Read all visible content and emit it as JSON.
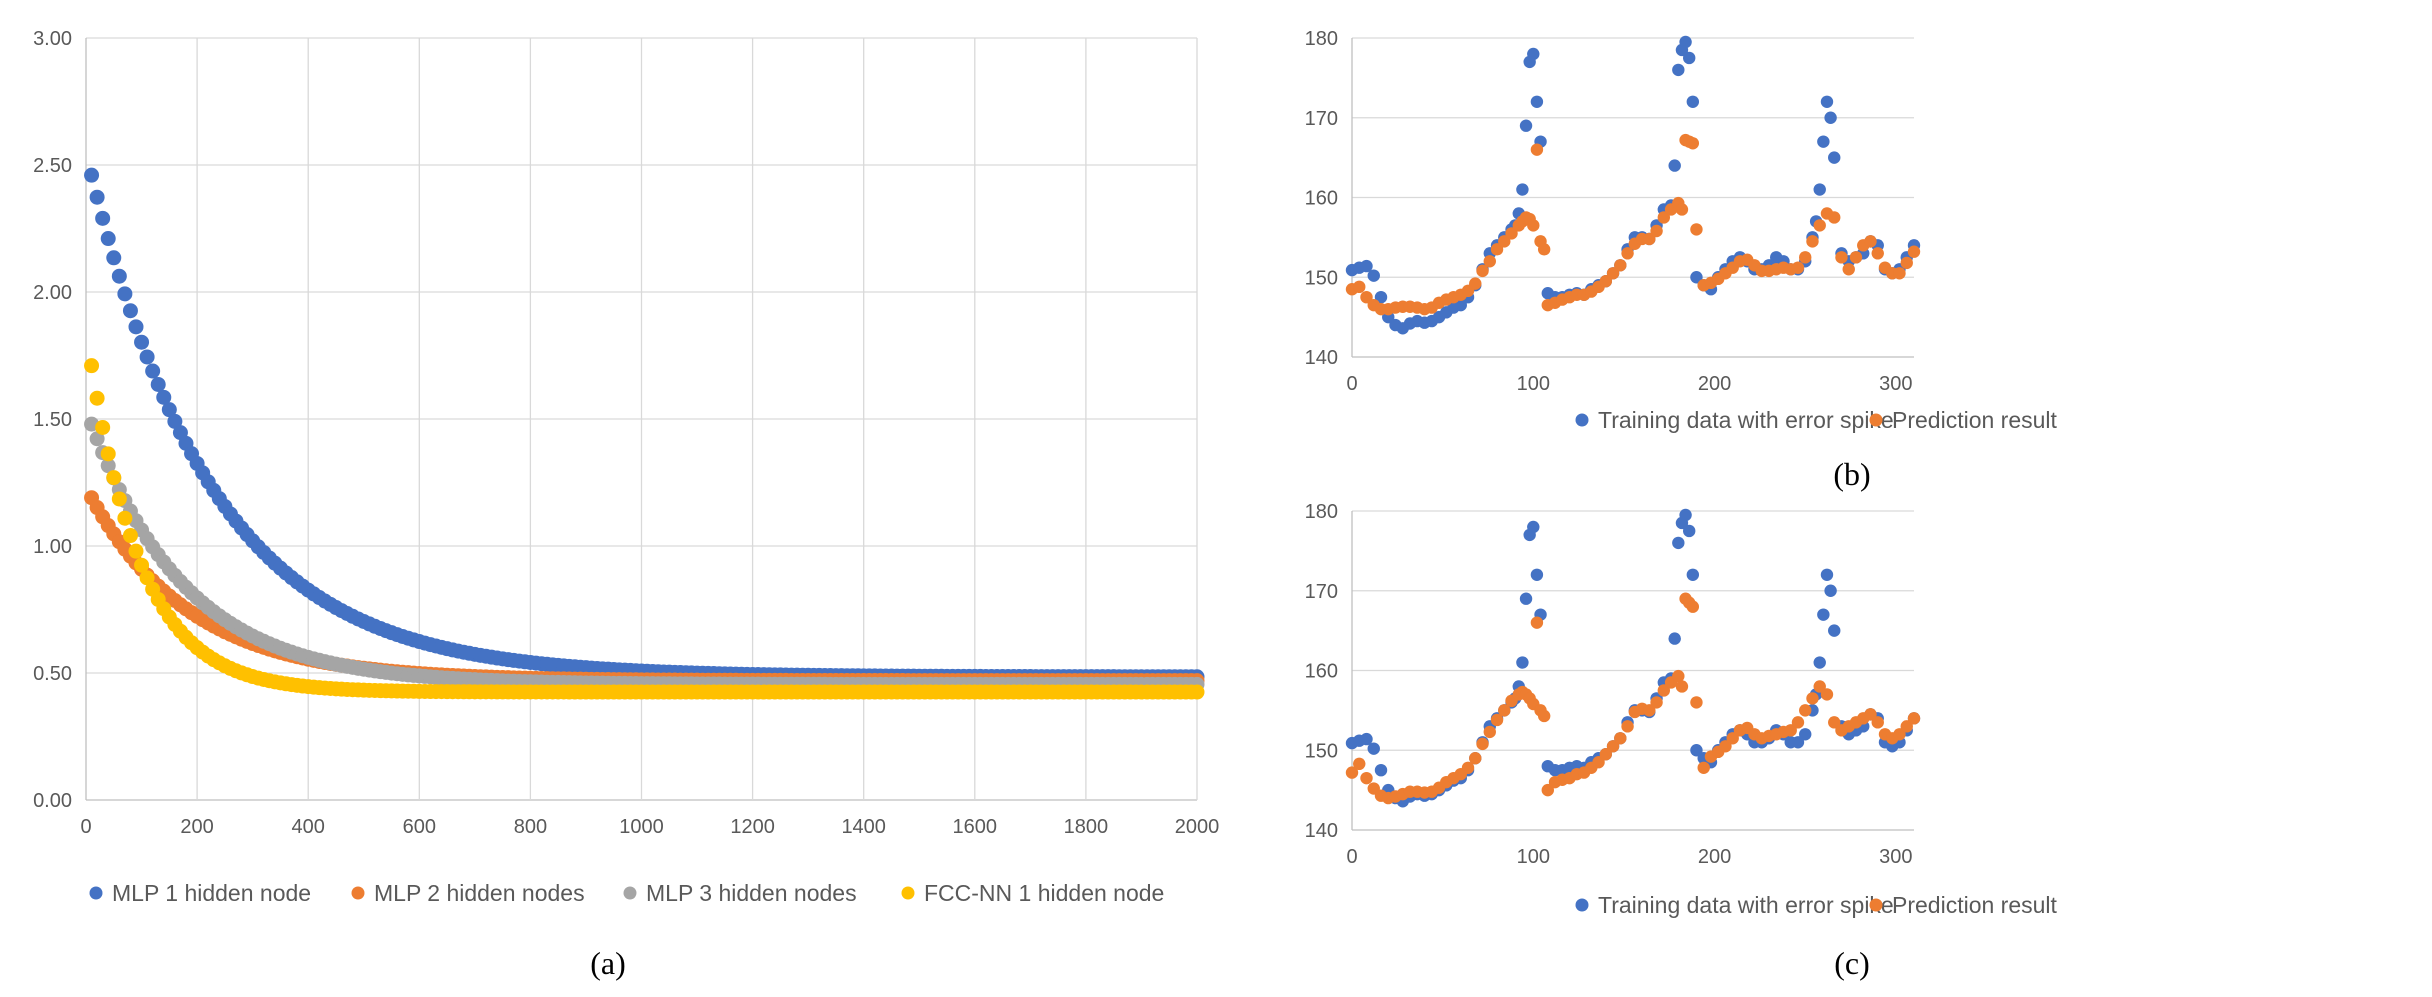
{
  "colors": {
    "blue": "#4472C4",
    "orange": "#ED7D31",
    "gray": "#A5A5A5",
    "gold": "#FFC000",
    "grid": "#D9D9D9",
    "axis": "#BFBFBF"
  },
  "chart_data": [
    {
      "id": "a",
      "type": "scatter",
      "caption": "(a)",
      "xlim": [
        0,
        2000
      ],
      "ylim": [
        0,
        3
      ],
      "x_ticks": [
        "0",
        "200",
        "400",
        "600",
        "800",
        "1000",
        "1200",
        "1400",
        "1600",
        "1800",
        "2000"
      ],
      "y_ticks": [
        "0.00",
        "0.50",
        "1.00",
        "1.50",
        "2.00",
        "2.50",
        "3.00"
      ],
      "grid": true,
      "legend_position": "bottom",
      "series": [
        {
          "name": "MLP 1 hidden node",
          "color": "#4472C4",
          "x_start": 10,
          "x_step": 10,
          "count": 200,
          "start": 2.46,
          "end": 0.485,
          "decay": 0.0045
        },
        {
          "name": "MLP 2 hidden nodes",
          "color": "#ED7D31",
          "x_start": 10,
          "x_step": 10,
          "count": 200,
          "start": 1.19,
          "end": 0.47,
          "decay": 0.0055
        },
        {
          "name": "MLP 3 hidden nodes",
          "color": "#A5A5A5",
          "x_start": 10,
          "x_step": 10,
          "count": 200,
          "start": 1.48,
          "end": 0.455,
          "decay": 0.0058
        },
        {
          "name": "FCC-NN 1 hidden node",
          "color": "#FFC000",
          "x_start": 10,
          "x_step": 10,
          "count": 200,
          "start": 1.71,
          "end": 0.425,
          "decay": 0.0105
        }
      ]
    },
    {
      "id": "b",
      "type": "scatter",
      "caption": "(b)",
      "xlim": [
        0,
        310
      ],
      "ylim": [
        140,
        180
      ],
      "x_ticks": [
        "0",
        "100",
        "200",
        "300"
      ],
      "y_ticks": [
        "140",
        "150",
        "160",
        "170",
        "180"
      ],
      "grid": true,
      "legend_position": "bottom",
      "series": [
        {
          "name": "Training data with error spike",
          "color": "#4472C4",
          "x": [
            0,
            4,
            8,
            12,
            16,
            20,
            24,
            28,
            32,
            36,
            40,
            44,
            48,
            52,
            56,
            60,
            64,
            68,
            72,
            76,
            80,
            84,
            88,
            90,
            92,
            94,
            96,
            98,
            100,
            102,
            104,
            108,
            112,
            116,
            120,
            124,
            128,
            132,
            136,
            140,
            144,
            148,
            152,
            156,
            160,
            164,
            168,
            172,
            176,
            178,
            180,
            182,
            184,
            186,
            188,
            190,
            194,
            198,
            202,
            206,
            210,
            214,
            218,
            222,
            226,
            230,
            234,
            238,
            242,
            246,
            250,
            254,
            256,
            258,
            260,
            262,
            264,
            266,
            270,
            274,
            278,
            282,
            286,
            290,
            294,
            298,
            302,
            306,
            310
          ],
          "y": [
            150.9,
            151.2,
            151.4,
            150.2,
            147.5,
            145,
            144,
            143.6,
            144.2,
            144.5,
            144.3,
            144.5,
            145,
            145.6,
            146.2,
            146.5,
            147.5,
            149,
            151,
            153,
            154,
            155,
            156,
            156.5,
            158,
            161,
            169,
            177,
            178,
            172,
            167,
            148,
            147.5,
            147.5,
            147.8,
            148,
            147.8,
            148.5,
            149,
            149.5,
            150.5,
            151.5,
            153.5,
            155,
            155,
            154.8,
            156.5,
            158.5,
            159,
            164,
            176,
            178.5,
            179.5,
            177.5,
            172,
            150,
            149,
            148.5,
            150,
            151,
            152,
            152.5,
            152,
            151,
            151,
            151.5,
            152.5,
            152,
            151,
            151,
            152,
            155,
            157,
            161,
            167,
            172,
            170,
            165,
            153,
            152,
            152.5,
            153,
            154.5,
            154,
            151,
            150.5,
            151,
            152.5,
            154
          ]
        },
        {
          "name": "Prediction result",
          "color": "#ED7D31",
          "x": [
            0,
            4,
            8,
            12,
            16,
            20,
            24,
            28,
            32,
            36,
            40,
            44,
            48,
            52,
            56,
            60,
            64,
            68,
            72,
            76,
            80,
            84,
            88,
            92,
            94,
            96,
            98,
            100,
            102,
            104,
            106,
            108,
            112,
            116,
            120,
            124,
            128,
            132,
            136,
            140,
            144,
            148,
            152,
            156,
            160,
            164,
            168,
            172,
            176,
            180,
            182,
            184,
            186,
            188,
            190,
            194,
            198,
            202,
            206,
            210,
            214,
            218,
            222,
            226,
            230,
            234,
            238,
            242,
            246,
            250,
            254,
            258,
            262,
            266,
            270,
            274,
            278,
            282,
            286,
            290,
            294,
            298,
            302,
            306,
            310
          ],
          "y": [
            148.5,
            148.8,
            147.5,
            146.5,
            146,
            146,
            146.2,
            146.3,
            146.3,
            146.2,
            146,
            146.2,
            146.8,
            147.2,
            147.5,
            147.8,
            148.3,
            149.2,
            150.8,
            152,
            153.5,
            154.5,
            155.5,
            156.5,
            157,
            157.5,
            157.3,
            156.5,
            166,
            154.5,
            153.5,
            146.5,
            146.8,
            147.2,
            147.5,
            147.8,
            147.8,
            148.2,
            148.8,
            149.5,
            150.5,
            151.5,
            153,
            154.2,
            154.8,
            154.8,
            155.8,
            157.5,
            158.5,
            159.3,
            158.5,
            167.2,
            167,
            166.8,
            156,
            149,
            149.3,
            149.8,
            150.5,
            151.2,
            152,
            152.2,
            151.5,
            150.8,
            150.8,
            151,
            151.2,
            151,
            151.2,
            152.5,
            154.5,
            156.5,
            158,
            157.5,
            152.5,
            151,
            152.5,
            154,
            154.5,
            153,
            151.2,
            150.5,
            150.5,
            151.8,
            153.2
          ]
        }
      ]
    },
    {
      "id": "c",
      "type": "scatter",
      "caption": "(c)",
      "xlim": [
        0,
        310
      ],
      "ylim": [
        140,
        180
      ],
      "x_ticks": [
        "0",
        "100",
        "200",
        "300"
      ],
      "y_ticks": [
        "140",
        "150",
        "160",
        "170",
        "180"
      ],
      "grid": true,
      "legend_position": "bottom",
      "series": [
        {
          "name": "Training data with error spike",
          "color": "#4472C4",
          "x": [
            0,
            4,
            8,
            12,
            16,
            20,
            24,
            28,
            32,
            36,
            40,
            44,
            48,
            52,
            56,
            60,
            64,
            68,
            72,
            76,
            80,
            84,
            88,
            90,
            92,
            94,
            96,
            98,
            100,
            102,
            104,
            108,
            112,
            116,
            120,
            124,
            128,
            132,
            136,
            140,
            144,
            148,
            152,
            156,
            160,
            164,
            168,
            172,
            176,
            178,
            180,
            182,
            184,
            186,
            188,
            190,
            194,
            198,
            202,
            206,
            210,
            214,
            218,
            222,
            226,
            230,
            234,
            238,
            242,
            246,
            250,
            254,
            256,
            258,
            260,
            262,
            264,
            266,
            270,
            274,
            278,
            282,
            286,
            290,
            294,
            298,
            302,
            306,
            310
          ],
          "y": [
            150.9,
            151.2,
            151.4,
            150.2,
            147.5,
            145,
            144,
            143.6,
            144.2,
            144.5,
            144.3,
            144.5,
            145,
            145.6,
            146.2,
            146.5,
            147.5,
            149,
            151,
            153,
            154,
            155,
            156,
            156.5,
            158,
            161,
            169,
            177,
            178,
            172,
            167,
            148,
            147.5,
            147.5,
            147.8,
            148,
            147.8,
            148.5,
            149,
            149.5,
            150.5,
            151.5,
            153.5,
            155,
            155,
            154.8,
            156.5,
            158.5,
            159,
            164,
            176,
            178.5,
            179.5,
            177.5,
            172,
            150,
            149,
            148.5,
            150,
            151,
            152,
            152.5,
            152,
            151,
            151,
            151.5,
            152.5,
            152,
            151,
            151,
            152,
            155,
            157,
            161,
            167,
            172,
            170,
            165,
            153,
            152,
            152.5,
            153,
            154.5,
            154,
            151,
            150.5,
            151,
            152.5,
            154
          ]
        },
        {
          "name": "Prediction result",
          "color": "#ED7D31",
          "x": [
            0,
            4,
            8,
            12,
            16,
            20,
            24,
            28,
            32,
            36,
            40,
            44,
            48,
            52,
            56,
            60,
            64,
            68,
            72,
            76,
            80,
            84,
            88,
            92,
            94,
            96,
            98,
            100,
            102,
            104,
            106,
            108,
            112,
            116,
            120,
            124,
            128,
            132,
            136,
            140,
            144,
            148,
            152,
            156,
            160,
            164,
            168,
            172,
            176,
            180,
            182,
            184,
            186,
            188,
            190,
            194,
            198,
            202,
            206,
            210,
            214,
            218,
            222,
            226,
            230,
            234,
            238,
            242,
            246,
            250,
            254,
            258,
            262,
            266,
            270,
            274,
            278,
            282,
            286,
            290,
            294,
            298,
            302,
            306,
            310
          ],
          "y": [
            147.2,
            148.3,
            146.5,
            145.2,
            144.3,
            144,
            144.2,
            144.5,
            144.8,
            144.8,
            144.7,
            144.8,
            145.3,
            146,
            146.5,
            147,
            147.8,
            149,
            150.8,
            152.3,
            153.8,
            155,
            156.2,
            157,
            157.3,
            157,
            156.5,
            155.8,
            166,
            155,
            154.3,
            145,
            146,
            146.3,
            146.5,
            147,
            147.2,
            147.8,
            148.5,
            149.5,
            150.5,
            151.5,
            153,
            154.8,
            155.2,
            155,
            156,
            157.5,
            158.5,
            159.3,
            158,
            169,
            168.5,
            168,
            156,
            147.8,
            149.2,
            149.8,
            150.5,
            151.5,
            152.5,
            152.8,
            152,
            151.5,
            151.8,
            152,
            152.3,
            152.5,
            153.5,
            155,
            156.5,
            158,
            157,
            153.5,
            152.5,
            153,
            153.5,
            154,
            154.5,
            153.5,
            152,
            151.5,
            152,
            153,
            154
          ]
        }
      ]
    }
  ]
}
